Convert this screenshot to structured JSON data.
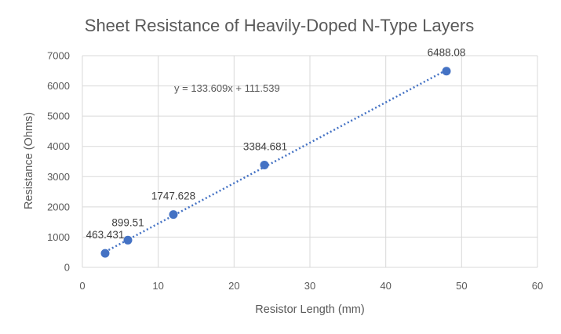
{
  "chart_data": {
    "type": "scatter",
    "title": "Sheet Resistance of Heavily-Doped N-Type Layers",
    "xlabel": "Resistor Length (mm)",
    "ylabel": "Resistance (Ohms)",
    "xlim": [
      0,
      60
    ],
    "ylim": [
      0,
      7000
    ],
    "xticks": [
      0,
      10,
      20,
      30,
      40,
      50,
      60
    ],
    "yticks": [
      0,
      1000,
      2000,
      3000,
      4000,
      5000,
      6000,
      7000
    ],
    "grid": true,
    "series": [
      {
        "x": [
          3,
          6,
          12,
          24,
          48
        ],
        "y": [
          463.431,
          899.51,
          1747.628,
          3384.681,
          6488.08
        ],
        "labels": [
          "463.431",
          "899.51",
          "1747.628",
          "3384.681",
          "6488.08"
        ],
        "color": "#4472C4"
      }
    ],
    "trendline": {
      "type": "linear",
      "slope": 133.609,
      "intercept": 111.539,
      "x_range": [
        3,
        48
      ],
      "equation": "y = 133.609x + 111.539",
      "style": "dotted",
      "color": "#4472C4"
    }
  }
}
